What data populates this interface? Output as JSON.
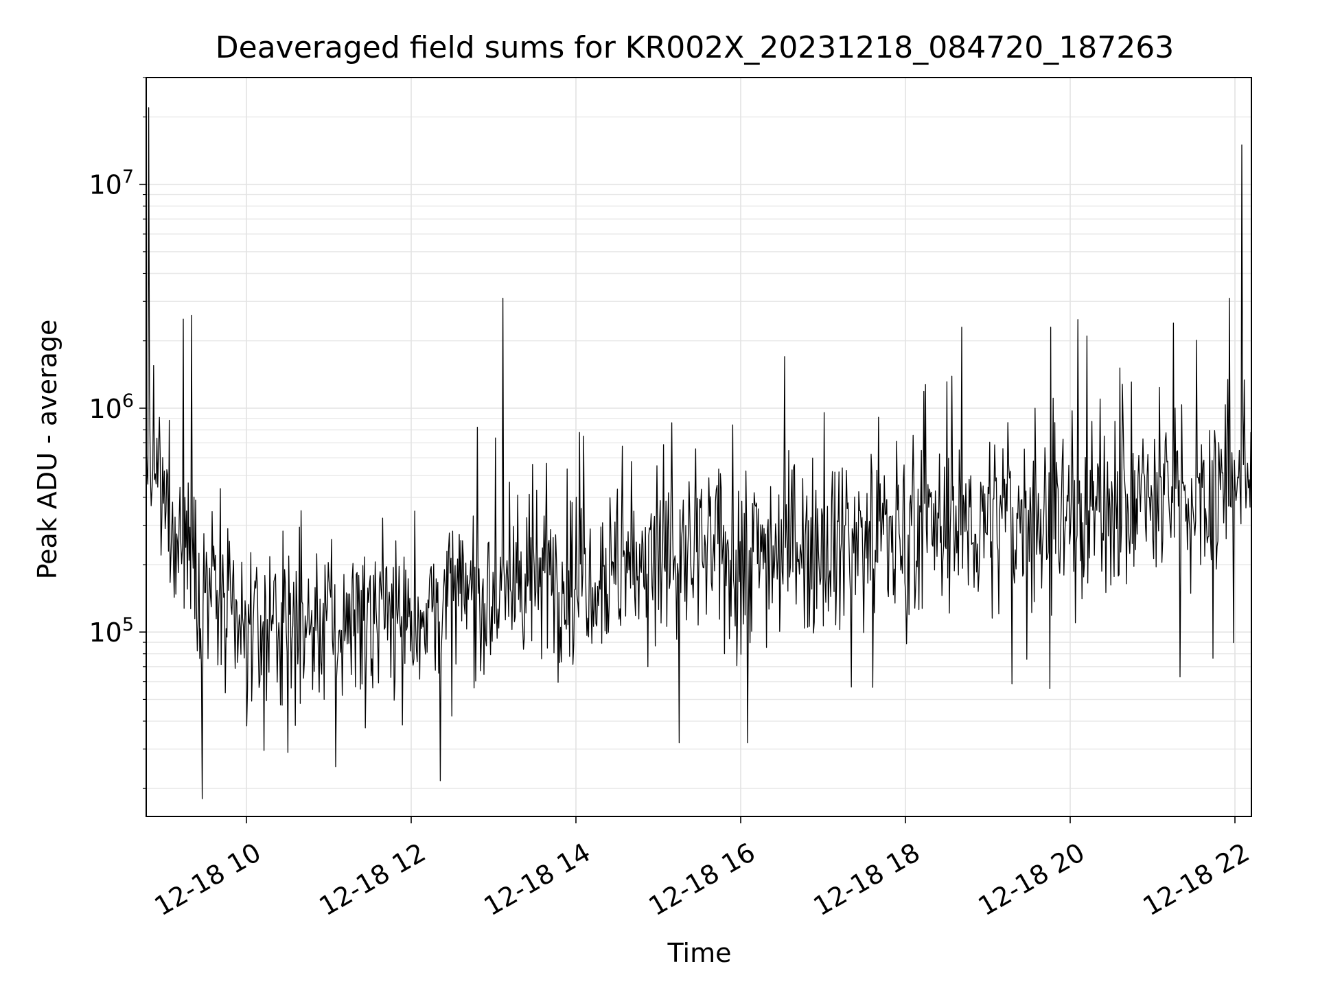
{
  "chart_data": {
    "type": "line",
    "title": "Deaveraged field sums for KR002X_20231218_084720_187263",
    "xlabel": "Time",
    "ylabel": "Peak ADU - average",
    "yscale": "log",
    "grid": true,
    "legend": "none",
    "line_color": "#000000",
    "x_tick_labels": [
      "12-18 10",
      "12-18 12",
      "12-18 14",
      "12-18 16",
      "12-18 18",
      "12-18 20",
      "12-18 22"
    ],
    "y_tick_labels": [
      {
        "base": "10",
        "exp": "5"
      },
      {
        "base": "10",
        "exp": "6"
      },
      {
        "base": "10",
        "exp": "7"
      }
    ],
    "xlim": [
      "2023-12-18 08:47",
      "2023-12-18 22:12"
    ],
    "ylim": [
      15000,
      30000000
    ],
    "series": [
      {
        "sample_interval_minutes": 0.6,
        "trend": [
          {
            "x": "2023-12-18 08:47",
            "y": 500000
          },
          {
            "x": "2023-12-18 09:10",
            "y": 300000
          },
          {
            "x": "2023-12-18 09:40",
            "y": 130000
          },
          {
            "x": "2023-12-18 10:00",
            "y": 100000
          },
          {
            "x": "2023-12-18 11:00",
            "y": 110000
          },
          {
            "x": "2023-12-18 12:00",
            "y": 120000
          },
          {
            "x": "2023-12-18 13:00",
            "y": 150000
          },
          {
            "x": "2023-12-18 14:00",
            "y": 190000
          },
          {
            "x": "2023-12-18 15:00",
            "y": 210000
          },
          {
            "x": "2023-12-18 16:00",
            "y": 230000
          },
          {
            "x": "2023-12-18 17:00",
            "y": 260000
          },
          {
            "x": "2023-12-18 18:00",
            "y": 280000
          },
          {
            "x": "2023-12-18 19:00",
            "y": 310000
          },
          {
            "x": "2023-12-18 20:00",
            "y": 350000
          },
          {
            "x": "2023-12-18 21:00",
            "y": 380000
          },
          {
            "x": "2023-12-18 21:40",
            "y": 420000
          },
          {
            "x": "2023-12-18 22:12",
            "y": 550000
          }
        ],
        "notable_peaks": [
          {
            "x": "2023-12-18 08:49",
            "y": 22000000
          },
          {
            "x": "2023-12-18 09:14",
            "y": 2500000
          },
          {
            "x": "2023-12-18 09:20",
            "y": 2600000
          },
          {
            "x": "2023-12-18 13:07",
            "y": 3100000
          },
          {
            "x": "2023-12-18 16:32",
            "y": 1700000
          },
          {
            "x": "2023-12-18 18:41",
            "y": 2300000
          },
          {
            "x": "2023-12-18 19:46",
            "y": 2300000
          },
          {
            "x": "2023-12-18 20:12",
            "y": 2100000
          },
          {
            "x": "2023-12-18 21:15",
            "y": 2400000
          },
          {
            "x": "2023-12-18 21:56",
            "y": 3100000
          },
          {
            "x": "2023-12-18 22:05",
            "y": 15000000
          }
        ],
        "notable_troughs": [
          {
            "x": "2023-12-18 09:28",
            "y": 18000
          },
          {
            "x": "2023-12-18 10:30",
            "y": 29000
          },
          {
            "x": "2023-12-18 11:05",
            "y": 25000
          },
          {
            "x": "2023-12-18 15:15",
            "y": 32000
          },
          {
            "x": "2023-12-18 16:05",
            "y": 32000
          },
          {
            "x": "2023-12-18 19:45",
            "y": 56000
          },
          {
            "x": "2023-12-18 21:20",
            "y": 63000
          }
        ]
      }
    ]
  }
}
